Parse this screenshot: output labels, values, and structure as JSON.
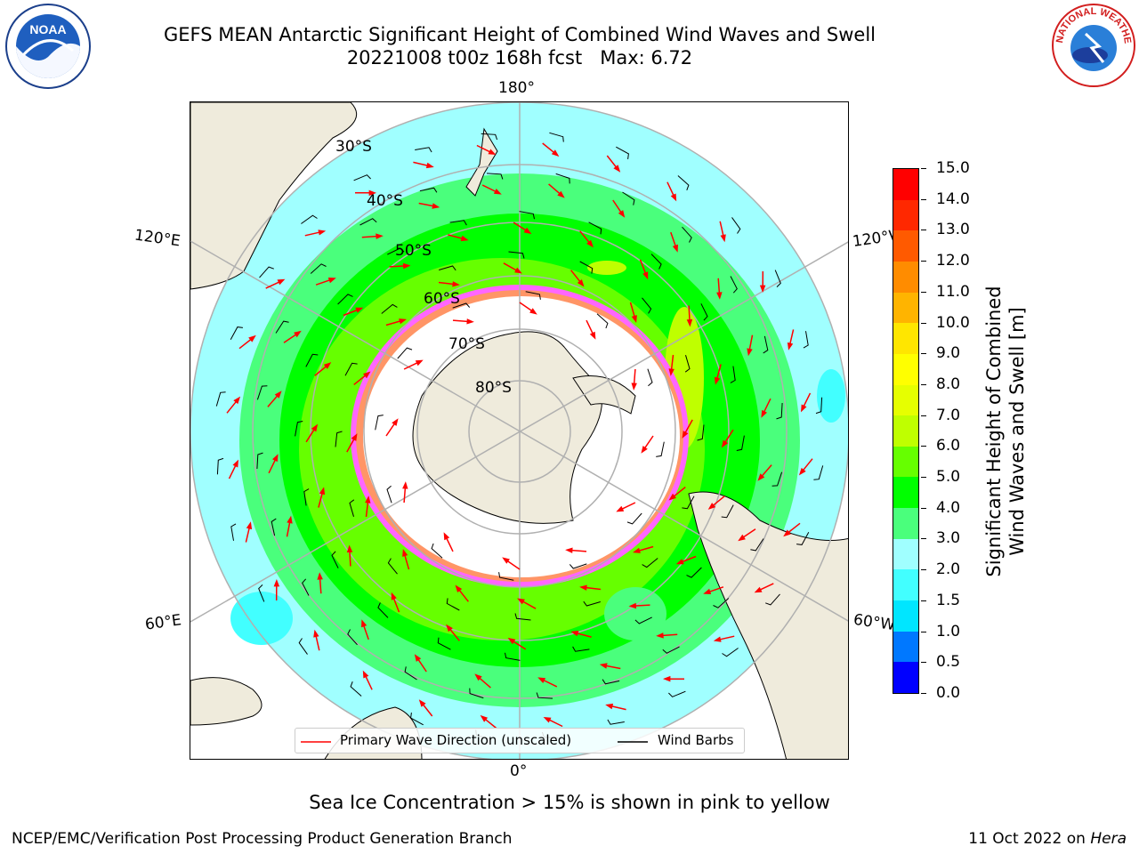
{
  "title": {
    "line1": "GEFS MEAN Antarctic Significant Height of Combined Wind Waves and Swell",
    "line2": "20221008 t00z 168h fcst   Max: 6.72"
  },
  "logos": {
    "left": {
      "name": "noaa-logo",
      "text": "NOAA"
    },
    "right": {
      "name": "nws-logo",
      "text": "NATIONAL WEATHER SERVICE"
    }
  },
  "map": {
    "projection": "south-polar-stereographic",
    "longitude_labels": {
      "top": "180°",
      "bottom": "0°",
      "left_upper": "120°E",
      "right_upper": "120°W",
      "left_lower": "60°E",
      "right_lower": "60°W"
    },
    "latitude_labels": [
      "30°S",
      "40°S",
      "50°S",
      "60°S",
      "70°S",
      "80°S"
    ],
    "land_color": "#efebdc",
    "grid_color": "#b0b0b0",
    "max_value": 6.72
  },
  "legend": {
    "wave_label": "Primary Wave Direction (unscaled)",
    "wind_label": "Wind Barbs",
    "wave_color": "#ff0000",
    "wind_color": "#000000"
  },
  "colorbar": {
    "label_line1": "Significant Height of Combined",
    "label_line2": "Wind Waves and Swell [m]",
    "ticks": [
      "0.0",
      "0.5",
      "1.0",
      "1.5",
      "2.0",
      "3.0",
      "4.0",
      "5.0",
      "6.0",
      "7.0",
      "8.0",
      "9.0",
      "10.0",
      "11.0",
      "12.0",
      "13.0",
      "14.0",
      "15.0"
    ],
    "colors": [
      "#0000ff",
      "#0078ff",
      "#00e6ff",
      "#42ffff",
      "#a0ffff",
      "#4aff7c",
      "#00ff00",
      "#66ff00",
      "#bfff00",
      "#e6ff00",
      "#ffff00",
      "#ffe600",
      "#ffb400",
      "#ff8c00",
      "#ff5a00",
      "#ff2800",
      "#ff0000"
    ]
  },
  "subtitle": "Sea Ice Concentration > 15% is shown in pink to yellow",
  "footer": {
    "left": "NCEP/EMC/Verification Post Processing Product Generation Branch",
    "date": "11 Oct 2022 on ",
    "machine": "Hera"
  }
}
